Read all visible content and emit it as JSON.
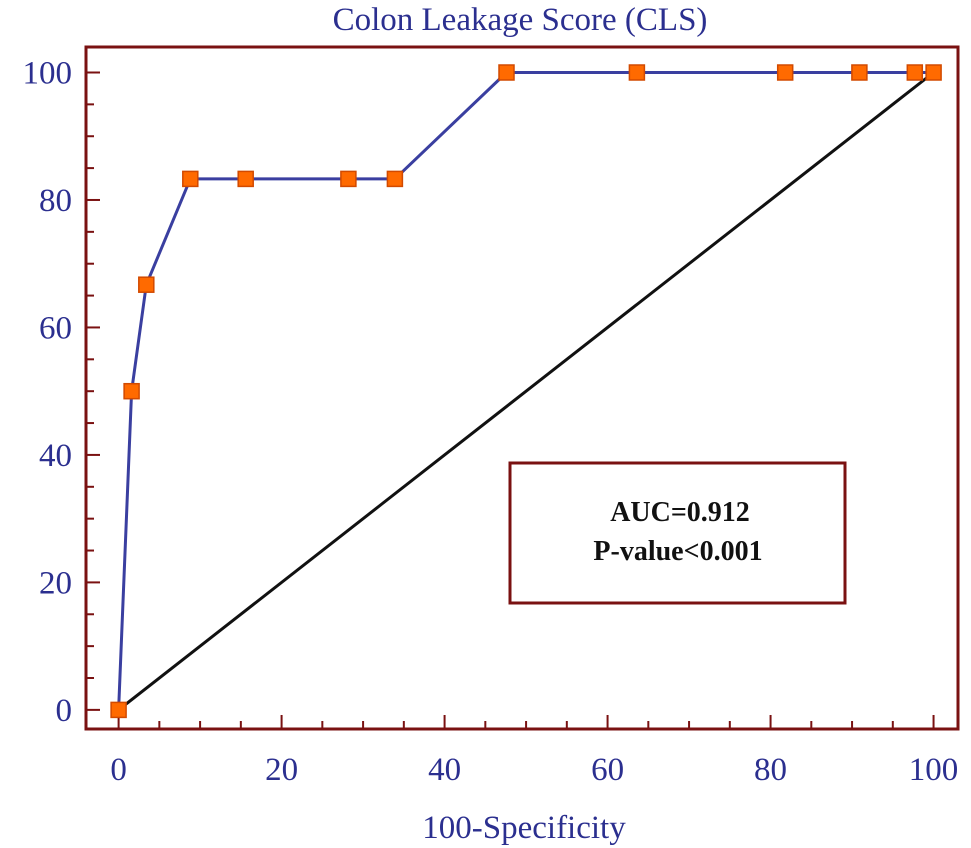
{
  "chart_data": {
    "type": "line",
    "title": "Colon Leakage Score (CLS)",
    "xlabel": "100-Specificity",
    "ylabel": "",
    "xlim": [
      -4,
      103
    ],
    "ylim": [
      -3,
      104
    ],
    "x_ticks": [
      0,
      20,
      40,
      60,
      80,
      100
    ],
    "y_ticks": [
      0,
      20,
      40,
      60,
      80,
      100
    ],
    "grid": false,
    "series": [
      {
        "x": [
          0,
          1.6,
          3.4,
          8.8,
          15.6,
          28.2,
          33.9,
          47.6,
          63.6,
          81.8,
          90.9,
          97.7,
          100
        ],
        "y": [
          0,
          50,
          66.7,
          83.3,
          83.3,
          83.3,
          83.3,
          100,
          100,
          100,
          100,
          100,
          100
        ]
      }
    ],
    "reference_line": {
      "x": [
        0,
        100
      ],
      "y": [
        0,
        100
      ]
    },
    "annotation": {
      "lines": [
        "AUC=0.912",
        "P-value<0.001"
      ]
    },
    "colors": {
      "frame": "#7a1111",
      "curve": "#3a3fa0",
      "marker_fill": "#ff6a00",
      "marker_stroke": "#d24a00",
      "reference": "#111111",
      "text": "#2b2f8f"
    }
  }
}
